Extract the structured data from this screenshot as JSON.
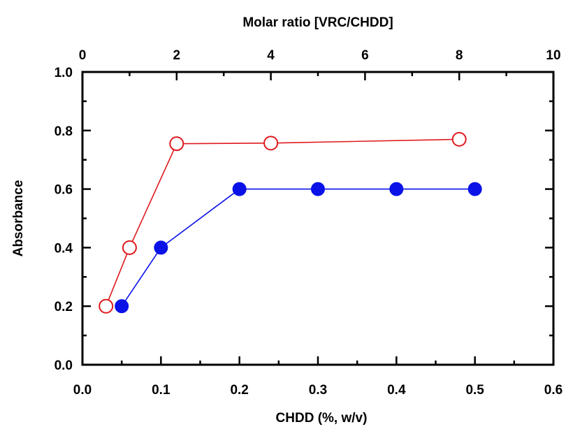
{
  "chart_data": {
    "type": "scatter",
    "title": "",
    "xlabel": "CHDD (%, w/v)",
    "ylabel": "Absorbance",
    "x2label": "Molar ratio [VRC/CHDD]",
    "xlim": [
      0.0,
      0.6
    ],
    "ylim": [
      0.0,
      1.0
    ],
    "x2lim": [
      0,
      10
    ],
    "xticks": [
      "0.0",
      "0.1",
      "0.2",
      "0.3",
      "0.4",
      "0.5",
      "0.6"
    ],
    "yticks": [
      "0.0",
      "0.2",
      "0.4",
      "0.6",
      "0.8",
      "1.0"
    ],
    "x2ticks": [
      "0",
      "2",
      "4",
      "6",
      "8",
      "10"
    ],
    "grid": false,
    "legend": "none",
    "series": [
      {
        "axis": "top",
        "marker": "open-circle",
        "color": "#e0191d",
        "x": [
          0.5,
          1.0,
          2.0,
          4.0,
          8.0
        ],
        "y": [
          0.2,
          0.4,
          0.755,
          0.757,
          0.77
        ]
      },
      {
        "axis": "bottom",
        "marker": "filled-circle",
        "color": "#0a12e8",
        "x": [
          0.05,
          0.1,
          0.2,
          0.3,
          0.4,
          0.5
        ],
        "y": [
          0.2,
          0.4,
          0.6,
          0.6,
          0.6,
          0.6
        ]
      }
    ]
  }
}
